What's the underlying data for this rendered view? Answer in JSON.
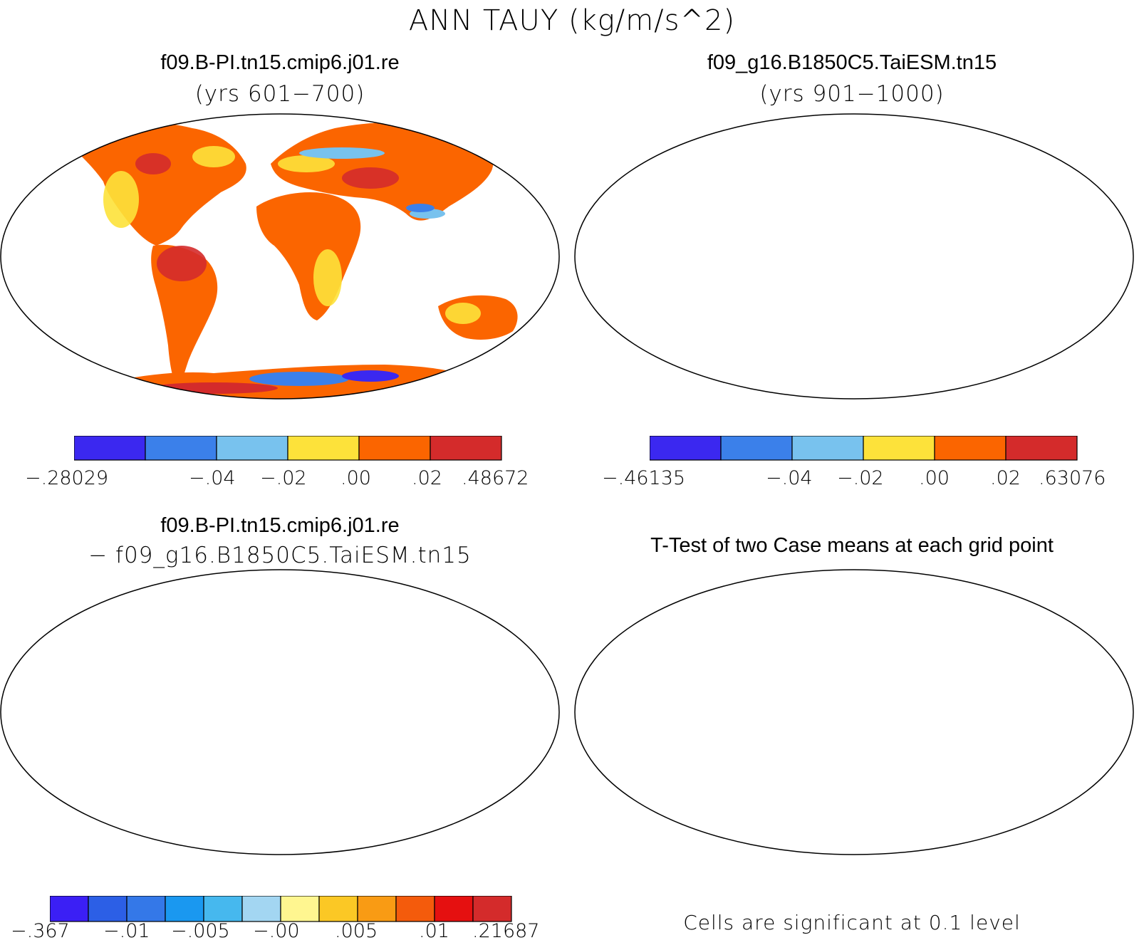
{
  "main_title": "ANN TAUY (kg/m/s^2)",
  "panels": [
    {
      "title": "f09.B-PI.tn15.cmip6.j01.re",
      "subtitle": "(yrs 601−700)",
      "colorbar": {
        "colors": [
          "#3b28f0",
          "#3b80ea",
          "#78c2ee",
          "#fde23a",
          "#fb6500",
          "#d42b2b"
        ],
        "labels": [
          "−.28029",
          "−.04",
          "−.02",
          ".00",
          ".02",
          ".48672"
        ]
      }
    },
    {
      "title": "f09_g16.B1850C5.TaiESM.tn15",
      "subtitle": "(yrs 901−1000)",
      "colorbar": {
        "colors": [
          "#3b28f0",
          "#3b80ea",
          "#78c2ee",
          "#fde23a",
          "#fb6500",
          "#d42b2b"
        ],
        "labels": [
          "−.46135",
          "−.04",
          "−.02",
          ".00",
          ".02",
          ".63076"
        ]
      }
    },
    {
      "title": "f09.B-PI.tn15.cmip6.j01.re",
      "subtitle": "− f09_g16.B1850C5.TaiESM.tn15",
      "colorbar": {
        "colors": [
          "#3b1ff5",
          "#2c5fe6",
          "#3478e8",
          "#1a98f0",
          "#46b8ee",
          "#a3d6f2",
          "#fff690",
          "#fbc825",
          "#f99b14",
          "#f45b0c",
          "#e51010",
          "#d42b2b"
        ],
        "labels": [
          "−.367",
          "−.01",
          "−.005",
          "−.00",
          ".005",
          ".01",
          ".21687"
        ]
      }
    },
    {
      "title": "T-Test of two Case means at each grid point",
      "note": "Cells are significant at 0.1 level",
      "significant_color": "#ee1111"
    }
  ]
}
